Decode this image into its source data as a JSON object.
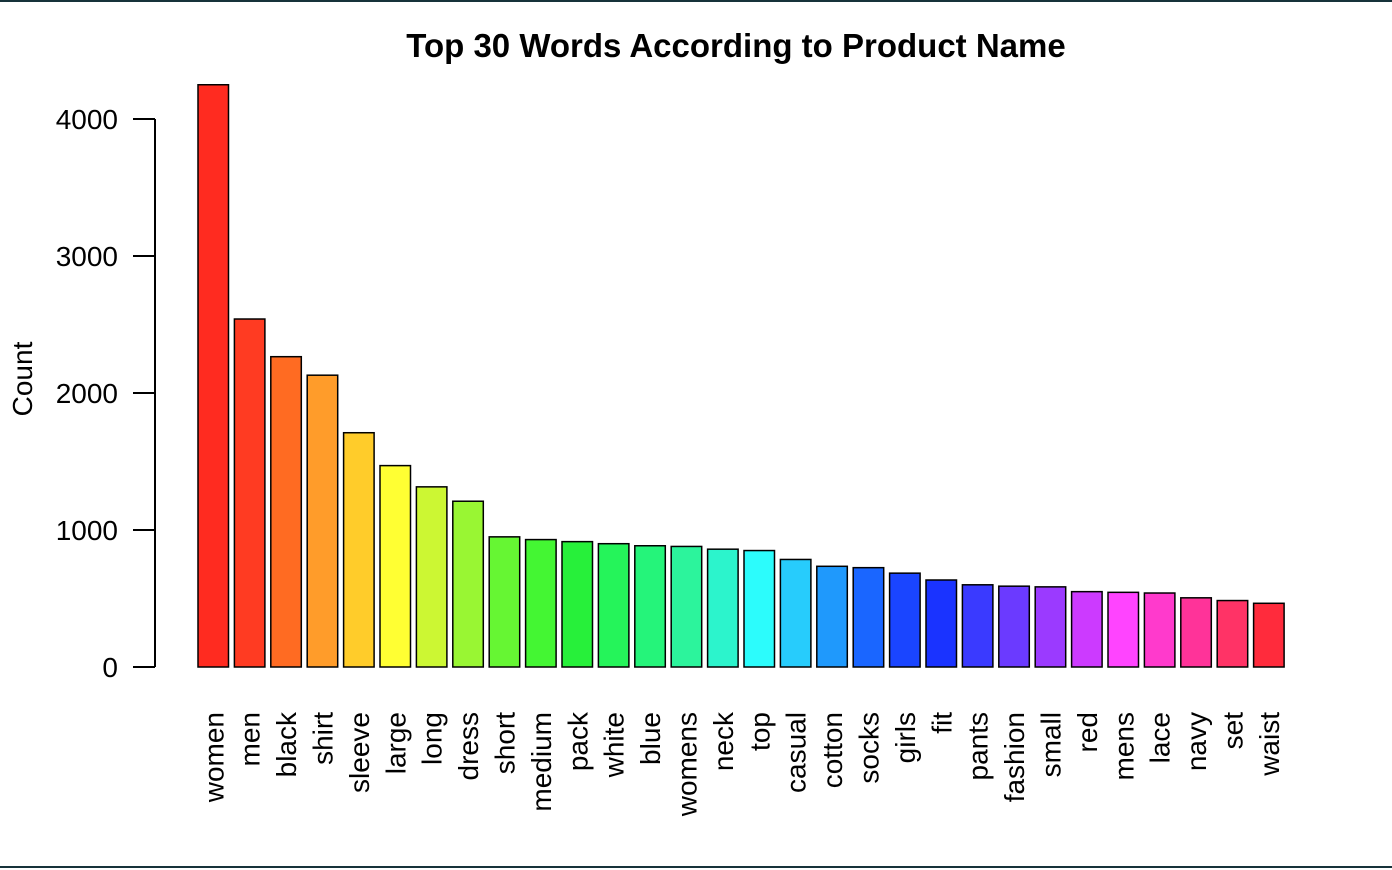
{
  "chart_data": {
    "type": "bar",
    "title": "Top 30 Words According to Product Name",
    "xlabel": "",
    "ylabel": "Count",
    "ylim": [
      0,
      4250
    ],
    "yticks": [
      0,
      1000,
      2000,
      3000,
      4000
    ],
    "grid": false,
    "legend": "none",
    "categories": [
      "women",
      "men",
      "black",
      "shirt",
      "sleeve",
      "large",
      "long",
      "dress",
      "short",
      "medium",
      "pack",
      "white",
      "blue",
      "womens",
      "neck",
      "top",
      "casual",
      "cotton",
      "socks",
      "girls",
      "fit",
      "pants",
      "fashion",
      "small",
      "red",
      "mens",
      "lace",
      "navy",
      "set",
      "waist"
    ],
    "values": [
      4250,
      2540,
      2265,
      2130,
      1710,
      1470,
      1315,
      1210,
      950,
      930,
      915,
      900,
      885,
      880,
      860,
      850,
      785,
      735,
      725,
      685,
      635,
      600,
      590,
      585,
      550,
      545,
      540,
      505,
      485,
      465
    ],
    "colors": [
      "#ff2b20",
      "#ff3b22",
      "#ff6b22",
      "#ff9c2a",
      "#ffcc2a",
      "#ffff33",
      "#ccf733",
      "#99f633",
      "#66f633",
      "#44f633",
      "#27f03a",
      "#25f45a",
      "#25f47a",
      "#2cf49c",
      "#2cf4cc",
      "#2cfcfc",
      "#27ccfc",
      "#1f99fc",
      "#1a66ff",
      "#1a45ff",
      "#1a33ff",
      "#3a3aff",
      "#6b3aff",
      "#9b3aff",
      "#cc3aff",
      "#ff44ff",
      "#ff3acc",
      "#ff3399",
      "#ff3366",
      "#ff2b3c"
    ]
  }
}
